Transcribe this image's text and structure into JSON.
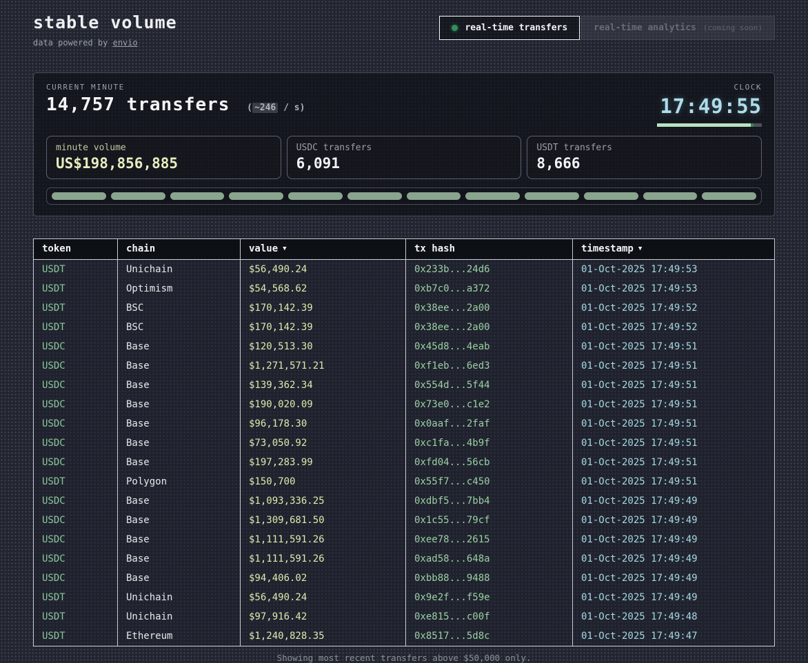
{
  "header": {
    "title": "stable volume",
    "subtitle_prefix": "data powered by ",
    "subtitle_link": "envio",
    "tabs": [
      {
        "label": "real-time transfers",
        "active": true
      },
      {
        "label": "real-time analytics",
        "note": "(coming soon)",
        "active": false
      }
    ]
  },
  "hero": {
    "label": "CURRENT MINUTE",
    "count": "14,757",
    "count_word": "transfers",
    "rate_open": "(",
    "rate_value": "~246",
    "rate_close": " / s)",
    "clock_label": "CLOCK",
    "clock_time": "17:49:55",
    "clock_progress_pct": 92,
    "segment_count": 12,
    "cards": [
      {
        "label": "minute volume",
        "value": "US$198,856,885"
      },
      {
        "label": "USDC transfers",
        "value": "6,091"
      },
      {
        "label": "USDT transfers",
        "value": "8,666"
      }
    ]
  },
  "table": {
    "sort_arrow": "▼",
    "columns": [
      {
        "label": "token",
        "sorted": false
      },
      {
        "label": "chain",
        "sorted": false
      },
      {
        "label": "value",
        "sorted": true
      },
      {
        "label": "tx hash",
        "sorted": false
      },
      {
        "label": "timestamp",
        "sorted": true
      }
    ],
    "rows": [
      {
        "token": "USDT",
        "chain": "Unichain",
        "value": "$56,490.24",
        "tx_hash": "0x233b...24d6",
        "timestamp": "01-Oct-2025 17:49:53"
      },
      {
        "token": "USDT",
        "chain": "Optimism",
        "value": "$54,568.62",
        "tx_hash": "0xb7c0...a372",
        "timestamp": "01-Oct-2025 17:49:53"
      },
      {
        "token": "USDT",
        "chain": "BSC",
        "value": "$170,142.39",
        "tx_hash": "0x38ee...2a00",
        "timestamp": "01-Oct-2025 17:49:52"
      },
      {
        "token": "USDT",
        "chain": "BSC",
        "value": "$170,142.39",
        "tx_hash": "0x38ee...2a00",
        "timestamp": "01-Oct-2025 17:49:52"
      },
      {
        "token": "USDC",
        "chain": "Base",
        "value": "$120,513.30",
        "tx_hash": "0x45d8...4eab",
        "timestamp": "01-Oct-2025 17:49:51"
      },
      {
        "token": "USDC",
        "chain": "Base",
        "value": "$1,271,571.21",
        "tx_hash": "0xf1eb...6ed3",
        "timestamp": "01-Oct-2025 17:49:51"
      },
      {
        "token": "USDC",
        "chain": "Base",
        "value": "$139,362.34",
        "tx_hash": "0x554d...5f44",
        "timestamp": "01-Oct-2025 17:49:51"
      },
      {
        "token": "USDC",
        "chain": "Base",
        "value": "$190,020.09",
        "tx_hash": "0x73e0...c1e2",
        "timestamp": "01-Oct-2025 17:49:51"
      },
      {
        "token": "USDC",
        "chain": "Base",
        "value": "$96,178.30",
        "tx_hash": "0x0aaf...2faf",
        "timestamp": "01-Oct-2025 17:49:51"
      },
      {
        "token": "USDC",
        "chain": "Base",
        "value": "$73,050.92",
        "tx_hash": "0xc1fa...4b9f",
        "timestamp": "01-Oct-2025 17:49:51"
      },
      {
        "token": "USDC",
        "chain": "Base",
        "value": "$197,283.99",
        "tx_hash": "0xfd04...56cb",
        "timestamp": "01-Oct-2025 17:49:51"
      },
      {
        "token": "USDT",
        "chain": "Polygon",
        "value": "$150,700",
        "tx_hash": "0x55f7...c450",
        "timestamp": "01-Oct-2025 17:49:51"
      },
      {
        "token": "USDC",
        "chain": "Base",
        "value": "$1,093,336.25",
        "tx_hash": "0xdbf5...7bb4",
        "timestamp": "01-Oct-2025 17:49:49"
      },
      {
        "token": "USDC",
        "chain": "Base",
        "value": "$1,309,681.50",
        "tx_hash": "0x1c55...79cf",
        "timestamp": "01-Oct-2025 17:49:49"
      },
      {
        "token": "USDC",
        "chain": "Base",
        "value": "$1,111,591.26",
        "tx_hash": "0xee78...2615",
        "timestamp": "01-Oct-2025 17:49:49"
      },
      {
        "token": "USDC",
        "chain": "Base",
        "value": "$1,111,591.26",
        "tx_hash": "0xad58...648a",
        "timestamp": "01-Oct-2025 17:49:49"
      },
      {
        "token": "USDC",
        "chain": "Base",
        "value": "$94,406.02",
        "tx_hash": "0xbb88...9488",
        "timestamp": "01-Oct-2025 17:49:49"
      },
      {
        "token": "USDT",
        "chain": "Unichain",
        "value": "$56,490.24",
        "tx_hash": "0x9e2f...f59e",
        "timestamp": "01-Oct-2025 17:49:49"
      },
      {
        "token": "USDT",
        "chain": "Unichain",
        "value": "$97,916.42",
        "tx_hash": "0xe815...c00f",
        "timestamp": "01-Oct-2025 17:49:48"
      },
      {
        "token": "USDT",
        "chain": "Ethereum",
        "value": "$1,240,828.35",
        "tx_hash": "0x8517...5d8c",
        "timestamp": "01-Oct-2025 17:49:47"
      }
    ]
  },
  "footer": {
    "note": "Showing most recent transfers above $50,000 only."
  },
  "colors": {
    "token_green": "#8ac79a",
    "value_yellow": "#dcebae",
    "hash_green": "#9cd0a4",
    "timestamp_cyan": "#a5d8e2",
    "clock_cyan": "#aedce9",
    "segment_green": "#8aa58f",
    "clock_fill_green": "#b7e3c0",
    "live_dot_green": "#2f8f5b",
    "minute_volume_yellow": "#e9edbe"
  }
}
